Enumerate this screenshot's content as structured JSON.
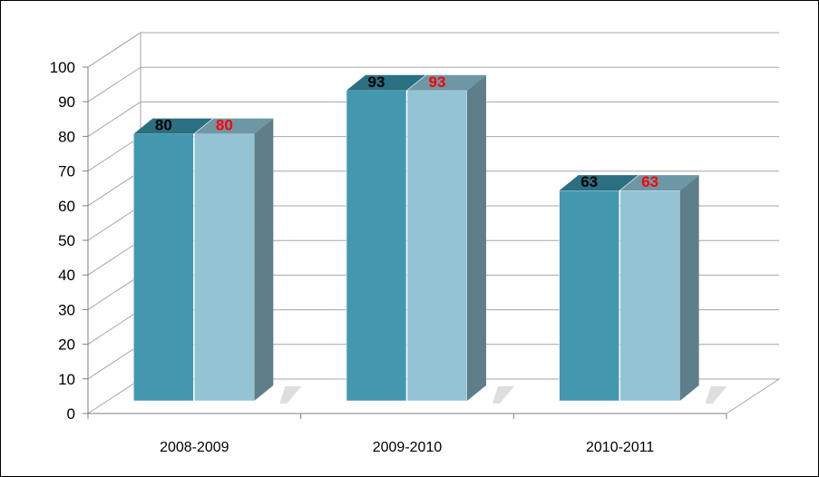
{
  "chart_data": {
    "type": "bar",
    "title": "",
    "xlabel": "",
    "ylabel": "",
    "categories": [
      "2008-2009",
      "2009-2010",
      "2010-2011"
    ],
    "series": [
      {
        "values": [
          80,
          93,
          63
        ]
      },
      {
        "values": [
          80,
          93,
          63
        ]
      }
    ],
    "data_labels": [
      [
        "80",
        "93",
        "63"
      ],
      [
        "80",
        "93",
        "63"
      ]
    ],
    "ylim": [
      0,
      100
    ],
    "yticks": [
      "0",
      "10",
      "20",
      "30",
      "40",
      "50",
      "60",
      "70",
      "80",
      "90",
      "100"
    ],
    "grid": true,
    "legend": "none",
    "three_d": true
  },
  "colors": {
    "series_front": [
      "#4398B0",
      "#94C3D6"
    ],
    "series_top": [
      "#2B6F82",
      "#6E97A6"
    ],
    "series_side": [
      "#3C6873",
      "#5E7F8A"
    ],
    "label_text": [
      "#000000",
      "#FF0000"
    ],
    "grid": "#A6A6A6",
    "axis": "#808080",
    "shadow": "#C8C8C8"
  }
}
